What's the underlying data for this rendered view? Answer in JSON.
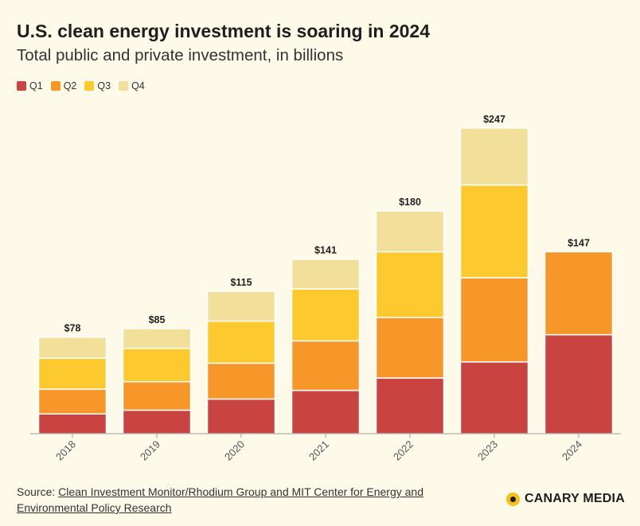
{
  "header": {
    "title": "U.S. clean energy investment is soaring in 2024",
    "subtitle": "Total public and private investment, in billions"
  },
  "legend": [
    {
      "label": "Q1",
      "color": "#c94441"
    },
    {
      "label": "Q2",
      "color": "#f7972a"
    },
    {
      "label": "Q3",
      "color": "#fcca2e"
    },
    {
      "label": "Q4",
      "color": "#f1df9a"
    }
  ],
  "footer": {
    "source_prefix": "Source: ",
    "source_link": "Clean Investment Monitor/Rhodium Group and MIT Center for Energy and Environmental Policy Research",
    "brand": "CANARY MEDIA"
  },
  "chart_data": {
    "type": "bar",
    "stacked": true,
    "title": "U.S. clean energy investment is soaring in 2024",
    "subtitle": "Total public and private investment, in billions",
    "categories": [
      "2018",
      "2019",
      "2020",
      "2021",
      "2022",
      "2023",
      "2024"
    ],
    "series": [
      {
        "name": "Q1",
        "color": "#c94441",
        "values": [
          16,
          19,
          28,
          35,
          45,
          58,
          80
        ]
      },
      {
        "name": "Q2",
        "color": "#f7972a",
        "values": [
          20,
          23,
          29,
          40,
          49,
          68,
          67
        ]
      },
      {
        "name": "Q3",
        "color": "#fcca2e",
        "values": [
          25,
          27,
          34,
          42,
          53,
          75,
          0
        ]
      },
      {
        "name": "Q4",
        "color": "#f1df9a",
        "values": [
          17,
          16,
          24,
          24,
          33,
          46,
          0
        ]
      }
    ],
    "totals": [
      78,
      85,
      115,
      141,
      180,
      247,
      147
    ],
    "total_labels": [
      "$78",
      "$85",
      "$115",
      "$141",
      "$180",
      "$247",
      "$147"
    ],
    "ylim": [
      0,
      260
    ],
    "grid": false,
    "legend_position": "top-left"
  }
}
